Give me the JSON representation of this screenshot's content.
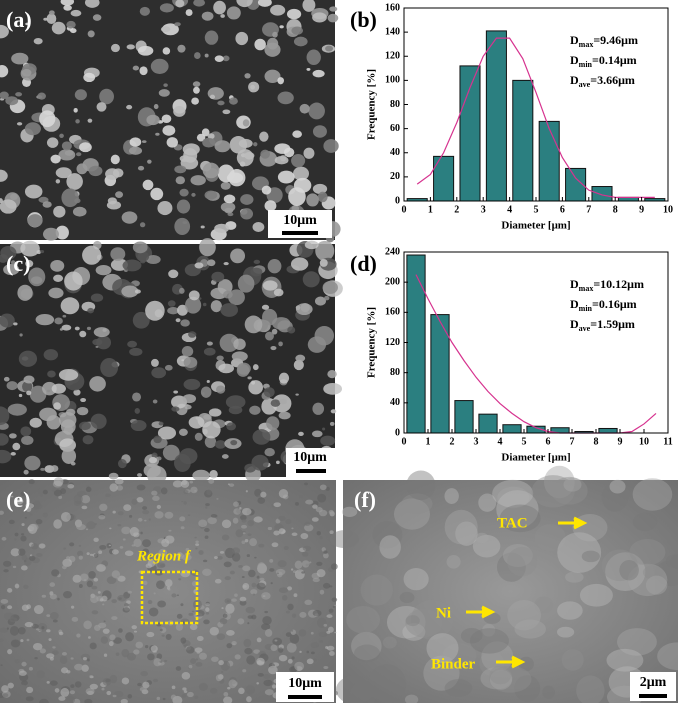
{
  "chart_data": [
    {
      "type": "histogram",
      "panel_label": "(b)",
      "xlabel": "Diameter [μm]",
      "ylabel": "Frequency [%]",
      "bins": [
        0,
        1,
        2,
        3,
        4,
        5,
        6,
        7,
        8,
        9,
        10
      ],
      "counts": [
        2,
        37,
        112,
        141,
        100,
        66,
        27,
        12,
        3,
        2
      ],
      "color": "#2b7f80",
      "fit": {
        "color": "#d6338f",
        "x": [
          0.5,
          1,
          1.5,
          2,
          2.5,
          3,
          3.5,
          4,
          4.5,
          5,
          5.5,
          6,
          6.5,
          7,
          7.5,
          8,
          8.5,
          9,
          9.5
        ],
        "values": [
          14,
          22,
          40,
          65,
          94,
          120,
          135,
          135,
          118,
          90,
          60,
          36,
          19,
          9,
          5,
          3,
          3,
          3,
          3
        ]
      },
      "xlim": [
        0,
        10
      ],
      "ylim": [
        0,
        160
      ],
      "xticks": [
        0,
        1,
        2,
        3,
        4,
        5,
        6,
        7,
        8,
        9,
        10
      ],
      "yticks": [
        0,
        20,
        40,
        60,
        80,
        100,
        120,
        140,
        160
      ],
      "annotations": [
        {
          "symbol": "D",
          "subscript": "max",
          "text": "=9.46μm"
        },
        {
          "symbol": "D",
          "subscript": "min",
          "text": "=0.14μm"
        },
        {
          "symbol": "D",
          "subscript": "ave",
          "text": "=3.66μm"
        }
      ]
    },
    {
      "type": "histogram",
      "panel_label": "(d)",
      "xlabel": "Diameter [μm]",
      "ylabel": "Frequency [%]",
      "bins": [
        0,
        1,
        2,
        3,
        4,
        5,
        6,
        7,
        8,
        9
      ],
      "counts": [
        236,
        157,
        43,
        25,
        11,
        9,
        7,
        2,
        6
      ],
      "color": "#2b7f80",
      "fit": {
        "color": "#d6338f",
        "x": [
          0.5,
          1,
          1.5,
          2,
          2.5,
          3,
          3.5,
          4,
          4.5,
          5,
          5.5,
          6,
          6.5,
          7,
          7.5,
          8,
          8.5,
          9,
          9.5,
          10,
          10.5
        ],
        "values": [
          210,
          178,
          148,
          120,
          96,
          74,
          55,
          39,
          26,
          15,
          7,
          2,
          0,
          0,
          0,
          0,
          0,
          0,
          2,
          12,
          26
        ]
      },
      "xlim": [
        0,
        11
      ],
      "ylim": [
        0,
        240
      ],
      "xticks": [
        0,
        1,
        2,
        3,
        4,
        5,
        6,
        7,
        8,
        9,
        10,
        11
      ],
      "yticks": [
        0,
        40,
        80,
        120,
        160,
        200,
        240
      ],
      "annotations": [
        {
          "symbol": "D",
          "subscript": "max",
          "text": "=10.12μm"
        },
        {
          "symbol": "D",
          "subscript": "min",
          "text": "=0.16μm"
        },
        {
          "symbol": "D",
          "subscript": "ave",
          "text": "=1.59μm"
        }
      ]
    }
  ],
  "panels": [
    {
      "label": "(a)",
      "scale_bar": "10μm"
    },
    {
      "label": "(c)",
      "scale_bar": "10μm"
    },
    {
      "label": "(e)",
      "scale_bar": "10μm",
      "region": "Region f"
    },
    {
      "label": "(f)",
      "scale_bar": "2μm",
      "callouts": [
        "TAC",
        "Ni",
        "Binder"
      ]
    }
  ]
}
